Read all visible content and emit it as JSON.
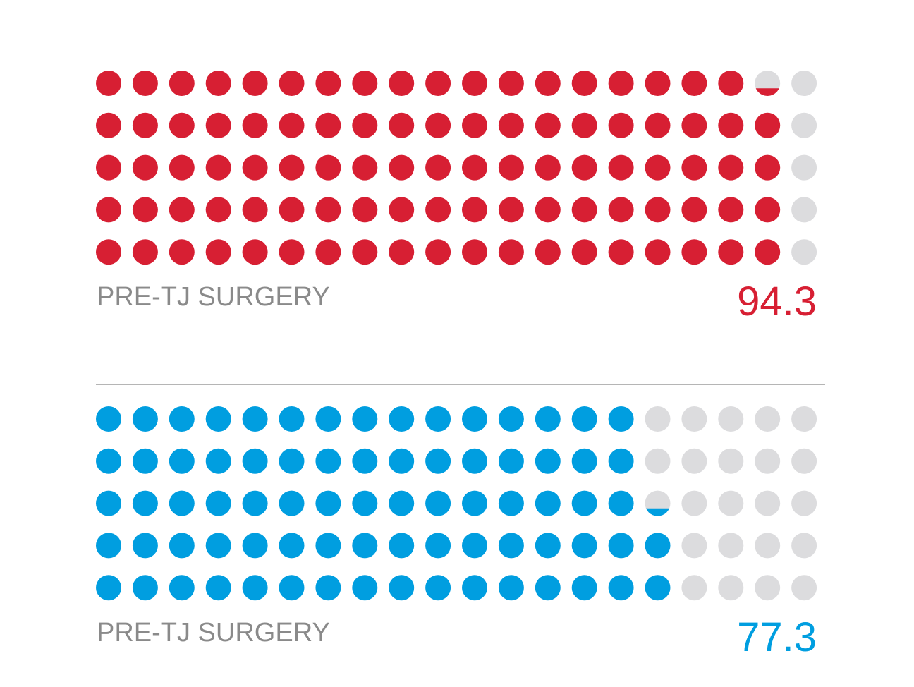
{
  "chart_data": [
    {
      "type": "waffle",
      "label": "PRE-TJ SURGERY",
      "value": 94.3,
      "color": "#d71f33",
      "empty_color": "#dcdcde"
    },
    {
      "type": "waffle",
      "label": "PRE-TJ SURGERY",
      "value": 77.3,
      "color": "#009ee0",
      "empty_color": "#dcdcde"
    }
  ]
}
